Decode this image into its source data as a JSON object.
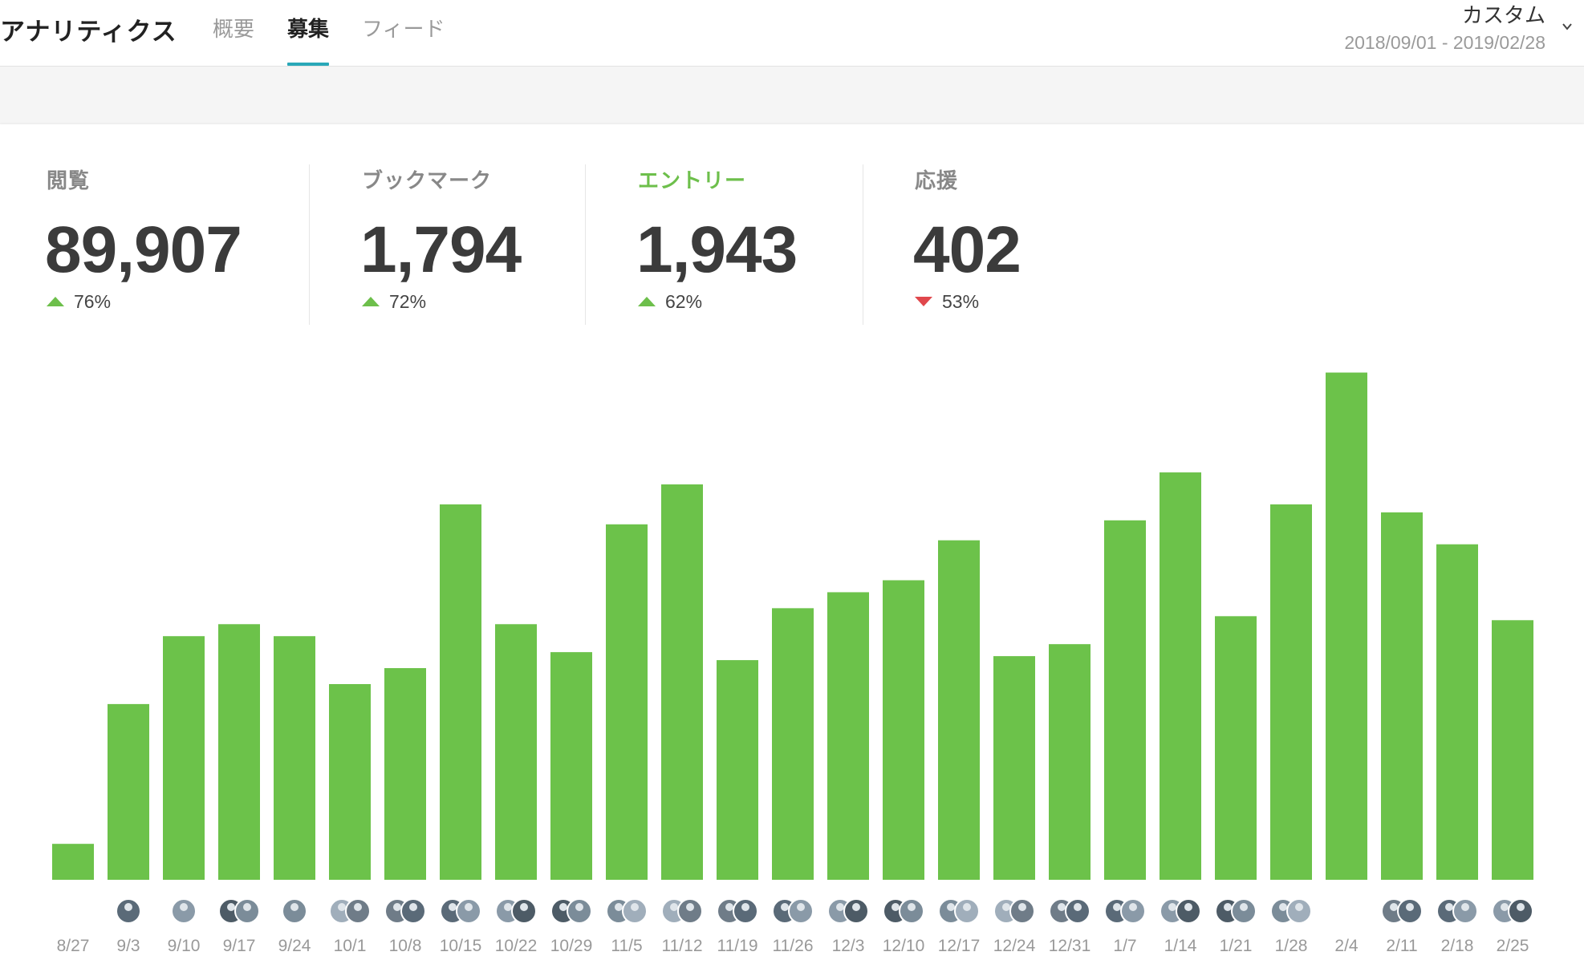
{
  "header": {
    "title": "アナリティクス",
    "tabs": [
      {
        "label": "概要",
        "active": false
      },
      {
        "label": "募集",
        "active": true
      },
      {
        "label": "フィード",
        "active": false
      }
    ],
    "range": {
      "label": "カスタム",
      "dates": "2018/09/01 - 2019/02/28"
    }
  },
  "stats": [
    {
      "label": "閲覧",
      "value": "89,907",
      "change": "76%",
      "direction": "up",
      "highlight": false
    },
    {
      "label": "ブックマーク",
      "value": "1,794",
      "change": "72%",
      "direction": "up",
      "highlight": false
    },
    {
      "label": "エントリー",
      "value": "1,943",
      "change": "62%",
      "direction": "up",
      "highlight": true
    },
    {
      "label": "応援",
      "value": "402",
      "change": "53%",
      "direction": "down",
      "highlight": false
    }
  ],
  "colors": {
    "accent": "#2aa8b8",
    "bar": "#6cc24a",
    "up": "#6dbf4b",
    "down": "#e0474c"
  },
  "chart_data": {
    "type": "bar",
    "categories": [
      "8/27",
      "9/3",
      "9/10",
      "9/17",
      "9/24",
      "10/1",
      "10/8",
      "10/15",
      "10/22",
      "10/29",
      "11/5",
      "11/12",
      "11/19",
      "11/26",
      "12/3",
      "12/10",
      "12/17",
      "12/24",
      "12/31",
      "1/7",
      "1/14",
      "1/21",
      "1/28",
      "2/4",
      "2/11",
      "2/18",
      "2/25"
    ],
    "values": [
      9,
      44,
      61,
      64,
      61,
      49,
      53,
      94,
      64,
      57,
      89,
      99,
      55,
      68,
      72,
      75,
      85,
      56,
      59,
      90,
      102,
      66,
      94,
      127,
      92,
      84,
      65
    ],
    "avatars_per_category": [
      0,
      1,
      1,
      2,
      1,
      2,
      2,
      2,
      2,
      2,
      2,
      2,
      2,
      2,
      2,
      2,
      2,
      2,
      2,
      2,
      2,
      2,
      2,
      0,
      2,
      2,
      2
    ],
    "xlabel": "",
    "ylabel": "",
    "grid": false,
    "legend": "none"
  }
}
